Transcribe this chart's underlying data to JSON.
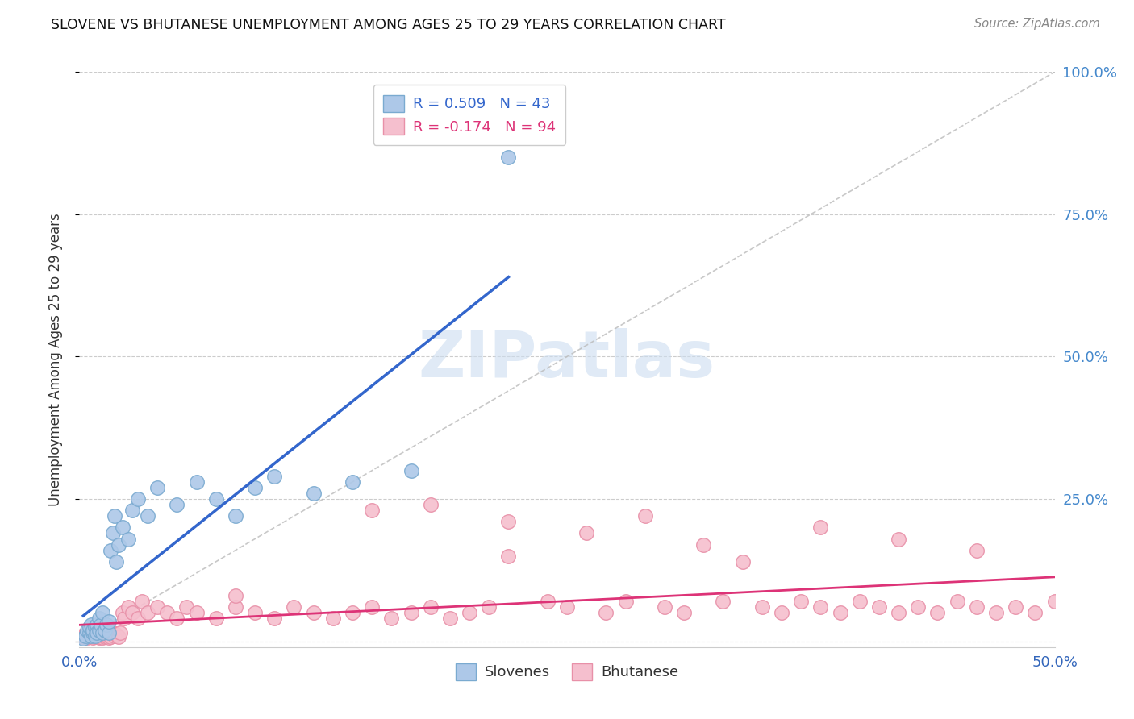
{
  "title": "SLOVENE VS BHUTANESE UNEMPLOYMENT AMONG AGES 25 TO 29 YEARS CORRELATION CHART",
  "source": "Source: ZipAtlas.com",
  "ylabel_label": "Unemployment Among Ages 25 to 29 years",
  "xlim": [
    0.0,
    0.5
  ],
  "ylim": [
    -0.01,
    1.0
  ],
  "slovene_R": 0.509,
  "slovene_N": 43,
  "bhutanese_R": -0.174,
  "bhutanese_N": 94,
  "slovene_color": "#adc8e8",
  "slovene_edge_color": "#7aaad0",
  "bhutanese_color": "#f5bfce",
  "bhutanese_edge_color": "#e890a8",
  "trend_slovene_color": "#3366cc",
  "trend_bhutanese_color": "#dd3377",
  "diagonal_color": "#bbbbbb",
  "background_color": "#ffffff",
  "grid_color": "#cccccc",
  "title_color": "#111111",
  "watermark_color": "#ccddf0",
  "slovene_x": [
    0.002,
    0.003,
    0.004,
    0.005,
    0.005,
    0.006,
    0.006,
    0.007,
    0.007,
    0.008,
    0.008,
    0.009,
    0.009,
    0.01,
    0.01,
    0.011,
    0.012,
    0.012,
    0.013,
    0.014,
    0.015,
    0.015,
    0.016,
    0.017,
    0.018,
    0.019,
    0.02,
    0.022,
    0.025,
    0.027,
    0.03,
    0.035,
    0.04,
    0.05,
    0.06,
    0.07,
    0.08,
    0.09,
    0.1,
    0.12,
    0.14,
    0.17,
    0.22
  ],
  "slovene_y": [
    0.005,
    0.01,
    0.02,
    0.015,
    0.025,
    0.01,
    0.03,
    0.015,
    0.02,
    0.01,
    0.025,
    0.03,
    0.015,
    0.02,
    0.04,
    0.03,
    0.015,
    0.05,
    0.02,
    0.03,
    0.015,
    0.035,
    0.16,
    0.19,
    0.22,
    0.14,
    0.17,
    0.2,
    0.18,
    0.23,
    0.25,
    0.22,
    0.27,
    0.24,
    0.28,
    0.25,
    0.22,
    0.27,
    0.29,
    0.26,
    0.28,
    0.3,
    0.85
  ],
  "bhutanese_x": [
    0.001,
    0.002,
    0.003,
    0.004,
    0.005,
    0.005,
    0.006,
    0.006,
    0.007,
    0.007,
    0.008,
    0.008,
    0.009,
    0.009,
    0.01,
    0.01,
    0.011,
    0.011,
    0.012,
    0.012,
    0.013,
    0.013,
    0.014,
    0.014,
    0.015,
    0.015,
    0.016,
    0.017,
    0.018,
    0.019,
    0.02,
    0.021,
    0.022,
    0.023,
    0.025,
    0.027,
    0.03,
    0.032,
    0.035,
    0.04,
    0.045,
    0.05,
    0.055,
    0.06,
    0.07,
    0.08,
    0.09,
    0.1,
    0.11,
    0.12,
    0.13,
    0.14,
    0.15,
    0.16,
    0.17,
    0.18,
    0.19,
    0.2,
    0.21,
    0.22,
    0.24,
    0.25,
    0.27,
    0.28,
    0.3,
    0.31,
    0.33,
    0.35,
    0.36,
    0.37,
    0.38,
    0.39,
    0.4,
    0.41,
    0.42,
    0.43,
    0.44,
    0.45,
    0.46,
    0.47,
    0.48,
    0.49,
    0.5,
    0.26,
    0.29,
    0.32,
    0.34,
    0.38,
    0.42,
    0.46,
    0.18,
    0.22,
    0.15,
    0.08
  ],
  "bhutanese_y": [
    0.01,
    0.008,
    0.012,
    0.006,
    0.01,
    0.015,
    0.008,
    0.012,
    0.01,
    0.006,
    0.008,
    0.015,
    0.01,
    0.012,
    0.006,
    0.015,
    0.008,
    0.01,
    0.012,
    0.006,
    0.01,
    0.008,
    0.015,
    0.01,
    0.006,
    0.012,
    0.008,
    0.015,
    0.01,
    0.012,
    0.008,
    0.015,
    0.05,
    0.04,
    0.06,
    0.05,
    0.04,
    0.07,
    0.05,
    0.06,
    0.05,
    0.04,
    0.06,
    0.05,
    0.04,
    0.06,
    0.05,
    0.04,
    0.06,
    0.05,
    0.04,
    0.05,
    0.06,
    0.04,
    0.05,
    0.06,
    0.04,
    0.05,
    0.06,
    0.15,
    0.07,
    0.06,
    0.05,
    0.07,
    0.06,
    0.05,
    0.07,
    0.06,
    0.05,
    0.07,
    0.06,
    0.05,
    0.07,
    0.06,
    0.05,
    0.06,
    0.05,
    0.07,
    0.06,
    0.05,
    0.06,
    0.05,
    0.07,
    0.19,
    0.22,
    0.17,
    0.14,
    0.2,
    0.18,
    0.16,
    0.24,
    0.21,
    0.23,
    0.08
  ]
}
